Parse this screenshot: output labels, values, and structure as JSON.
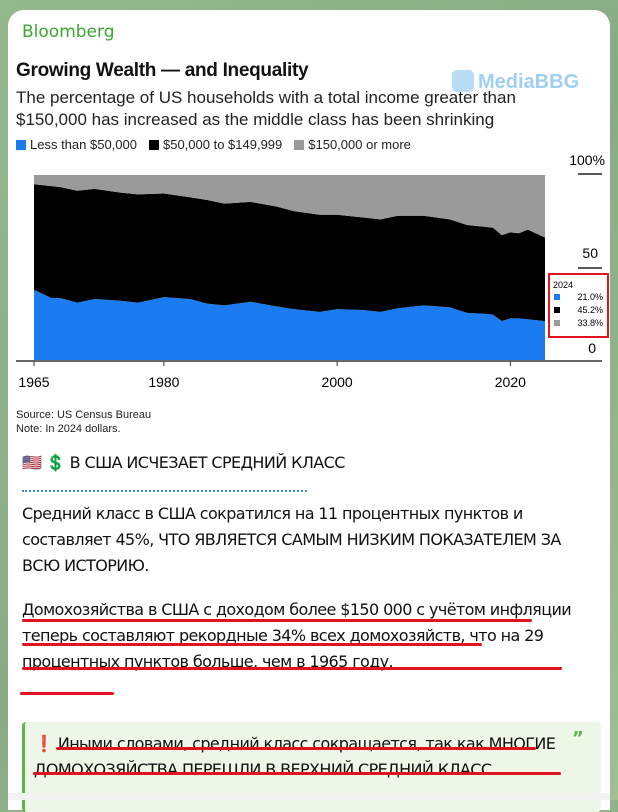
{
  "message": {
    "sender": "Bloomberg",
    "watermark": "MediaBBG",
    "heading_emoji": "🇺🇸 💲",
    "heading": "В США ИСЧЕЗАЕТ СРЕДНИЙ КЛАСС",
    "paragraph1": "Средний класс в США сократился на 11 процентных пунктов и составляет 45%, ЧТО ЯВЛЯЕТСЯ САМЫМ НИЗКИМ ПОКАЗАТЕЛЕМ ЗА ВСЮ ИСТОРИЮ.",
    "paragraph2": "Домохозяйства в США с доходом более $150 000 с учётом инфляции теперь составляют рекордные 34% всех домохозяйств, что на 29 процентных пунктов больше, чем в 1965 году.",
    "quote_icon": "❗",
    "quote": "Иными словами, средний класс сокращается, так как МНОГИЕ ДОМОХОЗЯЙСТВА ПЕРЕШЛИ В ВЕРХНИЙ СРЕДНИЙ КЛАСС.",
    "quote_mark": "”",
    "colors": {
      "sender": "#3aa82f",
      "underline": "#e0141e",
      "quote_border": "#5cb84a"
    }
  },
  "chart_data": {
    "type": "area",
    "stacked": true,
    "title": "Growing Wealth — and Inequality",
    "subtitle": "The percentage of US households with a total income greater than $150,000 has increased as the middle class has been shrinking",
    "source": "Source: US Census Bureau",
    "note": "Note: In 2024 dollars.",
    "x": [
      1965,
      1967,
      1968,
      1970,
      1972,
      1975,
      1977,
      1980,
      1983,
      1985,
      1987,
      1990,
      1993,
      1995,
      1998,
      2000,
      2003,
      2005,
      2007,
      2010,
      2013,
      2015,
      2017,
      2018,
      2019,
      2020,
      2021,
      2022,
      2024
    ],
    "series": [
      {
        "name": "Less than $50,000",
        "color": "#1a7cf0",
        "values": [
          38,
          33.5,
          33.5,
          31,
          33,
          32,
          31,
          34,
          33,
          30.5,
          29.5,
          31.5,
          29,
          27.5,
          26,
          27.5,
          27,
          26,
          28,
          29.5,
          28.5,
          25.5,
          25,
          24.5,
          21,
          22.5,
          22.5,
          22,
          21.0
        ]
      },
      {
        "name": "$50,000 to $149,999",
        "color": "#000000",
        "values": [
          57,
          60.5,
          60,
          60.5,
          59.5,
          58.5,
          58.5,
          56,
          55,
          56,
          55,
          54,
          54,
          53,
          52.5,
          51,
          50,
          50,
          50,
          48.5,
          47.5,
          47.5,
          47,
          47,
          46.5,
          46.5,
          46,
          48.5,
          45.2
        ]
      },
      {
        "name": "$150,000 or more",
        "color": "#9a9a9a",
        "values": [
          5,
          6,
          6.5,
          8.5,
          7.5,
          9.5,
          10.5,
          10,
          12,
          13.5,
          15.5,
          14.5,
          17,
          19.5,
          21.5,
          21.5,
          23,
          24,
          22,
          22,
          24,
          27,
          28,
          28.5,
          32.5,
          31,
          31.5,
          29.5,
          33.8
        ]
      }
    ],
    "x_ticks": [
      "1965",
      "1980",
      "2000",
      "2020"
    ],
    "y_ticks": [
      "100%",
      "50",
      "0"
    ],
    "ylim": [
      0,
      100
    ],
    "xlim": [
      1965,
      2024
    ],
    "grid": false,
    "legend_position": "top-left",
    "annotation": {
      "year": "2024",
      "values": [
        "21.0%",
        "45.2%",
        "33.8%"
      ],
      "box_color": "#e0141e"
    }
  }
}
